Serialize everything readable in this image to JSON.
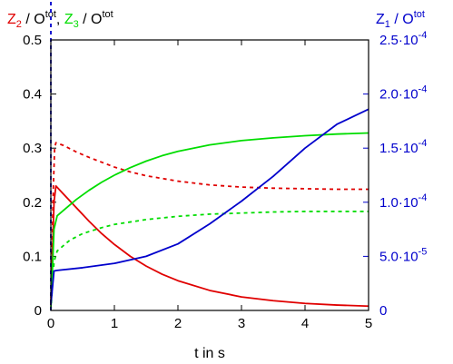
{
  "chart_data": {
    "type": "line",
    "left_title": {
      "part1": "Z",
      "part1_sub": "2",
      "part2": " / O",
      "part2_sup": "tot",
      "sep": ", ",
      "part3": "Z",
      "part3_sub": "3",
      "part4": " / O",
      "part4_sup": "tot"
    },
    "right_title": {
      "part1": "Z",
      "part1_sub": "1",
      "part2": " / O",
      "part2_sup": "tot"
    },
    "xlabel": "t in s",
    "xlim": [
      0,
      5
    ],
    "ylim_left": [
      0,
      0.5
    ],
    "ylim_right": [
      0,
      0.00025
    ],
    "x_ticks": [
      "0",
      "1",
      "2",
      "3",
      "4",
      "5"
    ],
    "y_left_ticks": [
      "0",
      "0.1",
      "0.2",
      "0.3",
      "0.4",
      "0.5"
    ],
    "y_right_ticks": [
      {
        "mant": "0",
        "exp": ""
      },
      {
        "mant": "5.0·10",
        "exp": "-5"
      },
      {
        "mant": "1.0·10",
        "exp": "-4"
      },
      {
        "mant": "1.5·10",
        "exp": "-4"
      },
      {
        "mant": "2.0·10",
        "exp": "-4"
      },
      {
        "mant": "2.5·10",
        "exp": "-4"
      }
    ],
    "colors": {
      "z1": "#0000cc",
      "z2": "#e00000",
      "z3": "#00dd00"
    },
    "series": [
      {
        "color": "#e00000",
        "dashed": false,
        "axis": "left",
        "x": [
          0,
          0.05,
          0.08,
          0.2,
          0.4,
          0.6,
          0.8,
          1.0,
          1.25,
          1.5,
          1.75,
          2.0,
          2.5,
          3.0,
          3.5,
          4.0,
          4.5,
          5.0
        ],
        "y": [
          0.01,
          0.2,
          0.23,
          0.215,
          0.19,
          0.165,
          0.142,
          0.122,
          0.1,
          0.082,
          0.067,
          0.055,
          0.037,
          0.025,
          0.018,
          0.013,
          0.01,
          0.008
        ]
      },
      {
        "color": "#e00000",
        "dashed": true,
        "axis": "left",
        "x": [
          0,
          0.04,
          0.06,
          0.08,
          0.2,
          0.4,
          0.6,
          0.8,
          1.0,
          1.25,
          1.5,
          2.0,
          2.5,
          3.0,
          3.5,
          4.0,
          4.5,
          5.0
        ],
        "y": [
          0.01,
          0.23,
          0.3,
          0.31,
          0.305,
          0.293,
          0.283,
          0.274,
          0.265,
          0.256,
          0.249,
          0.239,
          0.232,
          0.228,
          0.226,
          0.225,
          0.224,
          0.224
        ]
      },
      {
        "color": "#00dd00",
        "dashed": false,
        "axis": "left",
        "x": [
          0,
          0.05,
          0.1,
          0.2,
          0.4,
          0.6,
          0.8,
          1.0,
          1.25,
          1.5,
          1.75,
          2.0,
          2.5,
          3.0,
          3.5,
          4.0,
          4.5,
          5.0
        ],
        "y": [
          0.0,
          0.15,
          0.175,
          0.185,
          0.205,
          0.222,
          0.237,
          0.25,
          0.264,
          0.276,
          0.286,
          0.294,
          0.306,
          0.314,
          0.319,
          0.323,
          0.326,
          0.328
        ]
      },
      {
        "color": "#00dd00",
        "dashed": true,
        "axis": "left",
        "x": [
          0,
          0.05,
          0.1,
          0.3,
          0.5,
          0.8,
          1.0,
          1.5,
          2.0,
          2.5,
          3.0,
          3.5,
          4.0,
          4.5,
          5.0
        ],
        "y": [
          0.0,
          0.09,
          0.11,
          0.13,
          0.142,
          0.153,
          0.159,
          0.168,
          0.174,
          0.178,
          0.18,
          0.182,
          0.183,
          0.183,
          0.183
        ]
      },
      {
        "color": "#0000cc",
        "dashed": false,
        "axis": "right",
        "x": [
          0,
          0.05,
          0.1,
          0.5,
          1.0,
          1.5,
          2.0,
          2.5,
          3.0,
          3.5,
          4.0,
          4.5,
          5.0
        ],
        "y": [
          5e-06,
          3.65e-05,
          3.7e-05,
          3.95e-05,
          4.35e-05,
          5e-05,
          6.15e-05,
          8e-05,
          0.000101,
          0.000124,
          0.00015,
          0.000172,
          0.000186
        ]
      },
      {
        "color": "#0000cc",
        "dashed": true,
        "axis": "right",
        "x": [
          0,
          0.03,
          0.06,
          0.1,
          0.5,
          1.0,
          2.0,
          3.0,
          4.0,
          5.0
        ],
        "y": [
          0.0,
          0.024,
          0.025,
          0.0245,
          0.0235,
          0.0225,
          0.0215,
          0.021,
          0.0205,
          0.0205
        ]
      }
    ]
  }
}
